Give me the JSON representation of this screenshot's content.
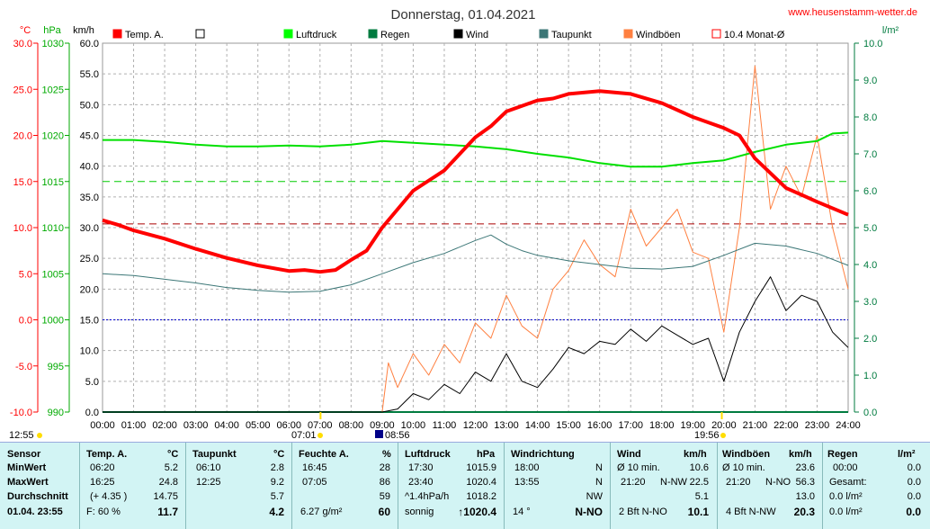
{
  "title": "Donnerstag, 01.04.2021",
  "site": "www.heusenstamm-wetter.de",
  "units": {
    "left1": "°C",
    "left2": "hPa",
    "left3": "km/h",
    "right": "l/m²"
  },
  "legend": [
    {
      "label": "Temp. A.",
      "color": "#ff0000"
    },
    {
      "label": "",
      "color": "#ffffff"
    },
    {
      "label": "Luftdruck",
      "color": "#00ff00"
    },
    {
      "label": "Regen",
      "color": "#007b3f"
    },
    {
      "label": "Wind",
      "color": "#000000"
    },
    {
      "label": "Taupunkt",
      "color": "#3c7777"
    },
    {
      "label": "Windböen",
      "color": "#ff8040"
    },
    {
      "label": "10.4 Monat-Ø",
      "color": "#ff0000"
    }
  ],
  "axes": {
    "temp_ticks": [
      "30.0",
      "25.0",
      "20.0",
      "15.0",
      "10.0",
      "5.0",
      "0.0",
      "-5.0",
      "-10.0"
    ],
    "hpa_ticks": [
      "1030",
      "1025",
      "1020",
      "1015",
      "1010",
      "1005",
      "1000",
      "995",
      "990"
    ],
    "kmh_ticks": [
      "60.0",
      "55.0",
      "50.0",
      "45.0",
      "40.0",
      "35.0",
      "30.0",
      "25.0",
      "20.0",
      "15.0",
      "10.0",
      "5.0",
      "0.0"
    ],
    "rain_ticks": [
      "10.0",
      "9.0",
      "8.0",
      "7.0",
      "6.0",
      "5.0",
      "4.0",
      "3.0",
      "2.0",
      "1.0",
      "0.0"
    ],
    "hours": [
      "00:00",
      "01:00",
      "02:00",
      "03:00",
      "04:00",
      "05:00",
      "06:00",
      "07:00",
      "08:00",
      "09:00",
      "10:00",
      "11:00",
      "12:00",
      "13:00",
      "14:00",
      "15:00",
      "16:00",
      "17:00",
      "18:00",
      "19:00",
      "20:00",
      "21:00",
      "22:00",
      "23:00",
      "24:00"
    ]
  },
  "markers": {
    "start": "12:55",
    "sunrise": "07:01",
    "event": "08:56",
    "sunset": "19:56"
  },
  "chart_data": {
    "type": "line",
    "title": "Donnerstag, 01.04.2021",
    "x_unit": "hour",
    "ylim_temp": [
      -10,
      30
    ],
    "ylim_hpa": [
      990,
      1030
    ],
    "ylim_kmh": [
      0,
      60
    ],
    "ylim_rain": [
      0,
      10
    ],
    "reference_lines": {
      "temp_month_avg": 10.4,
      "hpa_ref": 1015,
      "temp_zero": 0
    },
    "series": [
      {
        "name": "Temp. A.",
        "axis": "temp",
        "x": [
          0,
          0.5,
          1,
          2,
          3,
          4,
          5,
          6,
          6.5,
          7,
          7.5,
          8,
          8.5,
          9,
          10,
          11,
          12,
          12.5,
          13,
          14,
          14.5,
          15,
          16,
          17,
          18,
          19,
          20,
          20.5,
          21,
          22,
          23,
          24
        ],
        "values": [
          10.8,
          10.3,
          9.7,
          8.8,
          7.7,
          6.7,
          5.9,
          5.3,
          5.4,
          5.2,
          5.4,
          6.5,
          7.5,
          10.0,
          14.0,
          16.2,
          19.8,
          21.0,
          22.6,
          23.8,
          24.0,
          24.5,
          24.8,
          24.5,
          23.5,
          22.0,
          20.8,
          20.0,
          17.5,
          14.3,
          12.8,
          11.4
        ]
      },
      {
        "name": "Luftdruck",
        "axis": "hpa",
        "x": [
          0,
          1,
          2,
          3,
          4,
          5,
          6,
          7,
          8,
          9,
          10,
          11,
          12,
          13,
          14,
          15,
          16,
          17,
          18,
          19,
          20,
          21,
          22,
          23,
          23.5,
          24
        ],
        "values": [
          1019.5,
          1019.5,
          1019.3,
          1019.0,
          1018.8,
          1018.8,
          1018.9,
          1018.8,
          1019.0,
          1019.4,
          1019.2,
          1019.0,
          1018.8,
          1018.5,
          1018.0,
          1017.6,
          1017.0,
          1016.6,
          1016.6,
          1017.0,
          1017.3,
          1018.2,
          1019.0,
          1019.4,
          1020.2,
          1020.3
        ]
      },
      {
        "name": "Taupunkt",
        "axis": "temp",
        "x": [
          0,
          1,
          2,
          3,
          4,
          5,
          6,
          7,
          8,
          9,
          10,
          11,
          12,
          12.5,
          13,
          13.5,
          14,
          15,
          16,
          17,
          18,
          19,
          20,
          21,
          22,
          23,
          24
        ],
        "values": [
          5.0,
          4.8,
          4.4,
          4.0,
          3.5,
          3.2,
          3.0,
          3.1,
          3.8,
          5.0,
          6.2,
          7.2,
          8.6,
          9.2,
          8.2,
          7.5,
          7.0,
          6.4,
          6.0,
          5.6,
          5.5,
          5.8,
          7.0,
          8.3,
          8.0,
          7.2,
          5.9
        ]
      },
      {
        "name": "Wind",
        "axis": "kmh",
        "x": [
          0,
          9,
          9.5,
          10,
          10.5,
          11,
          11.5,
          12,
          12.5,
          13,
          13.5,
          14,
          14.5,
          15,
          15.5,
          16,
          16.5,
          17,
          17.5,
          18,
          18.5,
          19,
          19.5,
          20,
          20.5,
          21,
          21.5,
          22,
          22.5,
          23,
          23.5,
          24
        ],
        "values": [
          0,
          0,
          0.5,
          3.0,
          2.0,
          4.5,
          3.0,
          6.5,
          5.0,
          9.5,
          5.0,
          4.0,
          7.0,
          10.5,
          9.5,
          11.5,
          11.0,
          13.5,
          11.5,
          14.0,
          12.5,
          11.0,
          12.0,
          5.0,
          13.0,
          18.0,
          22.0,
          16.5,
          19.0,
          18.0,
          13.0,
          10.5
        ]
      },
      {
        "name": "Windböen",
        "axis": "kmh",
        "x": [
          0,
          9,
          9.2,
          9.5,
          10,
          10.5,
          11,
          11.5,
          12,
          12.5,
          13,
          13.5,
          14,
          14.5,
          15,
          15.5,
          16,
          16.5,
          17,
          17.5,
          18,
          18.5,
          19,
          19.5,
          20,
          20.5,
          21,
          21.5,
          22,
          22.5,
          23,
          23.5,
          24
        ],
        "values": [
          0,
          0,
          8.0,
          4.0,
          9.5,
          6.0,
          11.0,
          8.0,
          14.5,
          12.0,
          19.0,
          14.0,
          12.0,
          20.0,
          23.0,
          28.0,
          24.0,
          22.0,
          33.0,
          27.0,
          30.0,
          33.0,
          26.0,
          25.0,
          13.0,
          30.0,
          56.3,
          33.0,
          40.0,
          35.0,
          45.0,
          30.0,
          20.0
        ]
      },
      {
        "name": "Regen",
        "axis": "rain",
        "x": [
          0,
          24
        ],
        "values": [
          0,
          0
        ]
      }
    ]
  },
  "stats": {
    "headers": {
      "sensor": "Sensor",
      "temp": "Temp. A.",
      "temp_u": "°C",
      "tau": "Taupunkt",
      "tau_u": "°C",
      "feuchte": "Feuchte A.",
      "feuchte_u": "%",
      "luft": "Luftdruck",
      "luft_u": "hPa",
      "richt": "Windrichtung",
      "wind": "Wind",
      "wind_u": "km/h",
      "boeen": "Windböen",
      "boeen_u": "km/h",
      "regen": "Regen",
      "regen_u": "l/m²"
    },
    "rows": [
      {
        "label": "MinWert",
        "temp_t": "06:20",
        "temp_v": "5.2",
        "tau_t": "06:10",
        "tau_v": "2.8",
        "feu_t": "16:45",
        "feu_v": "28",
        "luft_t": "17:30",
        "luft_v": "1015.9",
        "richt_t": "18:00",
        "richt_v": "N",
        "wind_t": "Ø 10 min.",
        "wind_v": "10.6",
        "boe_t": "Ø 10 min.",
        "boe_v": "23.6",
        "regen_t": "00:00",
        "regen_v": "0.0"
      },
      {
        "label": "MaxWert",
        "temp_t": "16:25",
        "temp_v": "24.8",
        "tau_t": "12:25",
        "tau_v": "9.2",
        "feu_t": "07:05",
        "feu_v": "86",
        "luft_t": "23:40",
        "luft_v": "1020.4",
        "richt_t": "13:55",
        "richt_v": "N",
        "wind_t": "21:20",
        "wind_d": "N-NW",
        "wind_v": "22.5",
        "boe_t": "21:20",
        "boe_d": "N-NO",
        "boe_v": "56.3",
        "regen_t": "Gesamt:",
        "regen_v": "0.0"
      },
      {
        "label": "Durchschnitt",
        "temp_t": "(+ 4.35 )",
        "temp_v": "14.75",
        "tau_v": "5.7",
        "feu_v": "59",
        "luft_t": "^1.4hPa/h",
        "luft_v": "1018.2",
        "richt_v": "NW",
        "wind_v": "5.1",
        "boe_v": "13.0",
        "regen_t": "0.0 l/m²",
        "regen_v": "0.0"
      },
      {
        "label": "01.04. 23:55",
        "temp_t": "F: 60 %",
        "temp_v": "11.7",
        "tau_v": "4.2",
        "feu_t": "6.27 g/m²",
        "feu_v": "60",
        "luft_t": "sonnig",
        "luft_v": "↑1020.4",
        "richt_t": "14 °",
        "richt_v": "N-NO",
        "wind_t": "2 Bft N-NO",
        "wind_v": "10.1",
        "boe_t": "4 Bft N-NW",
        "boe_v": "20.3",
        "regen_t": "0.0 l/m²",
        "regen_v": "0.0"
      }
    ]
  }
}
